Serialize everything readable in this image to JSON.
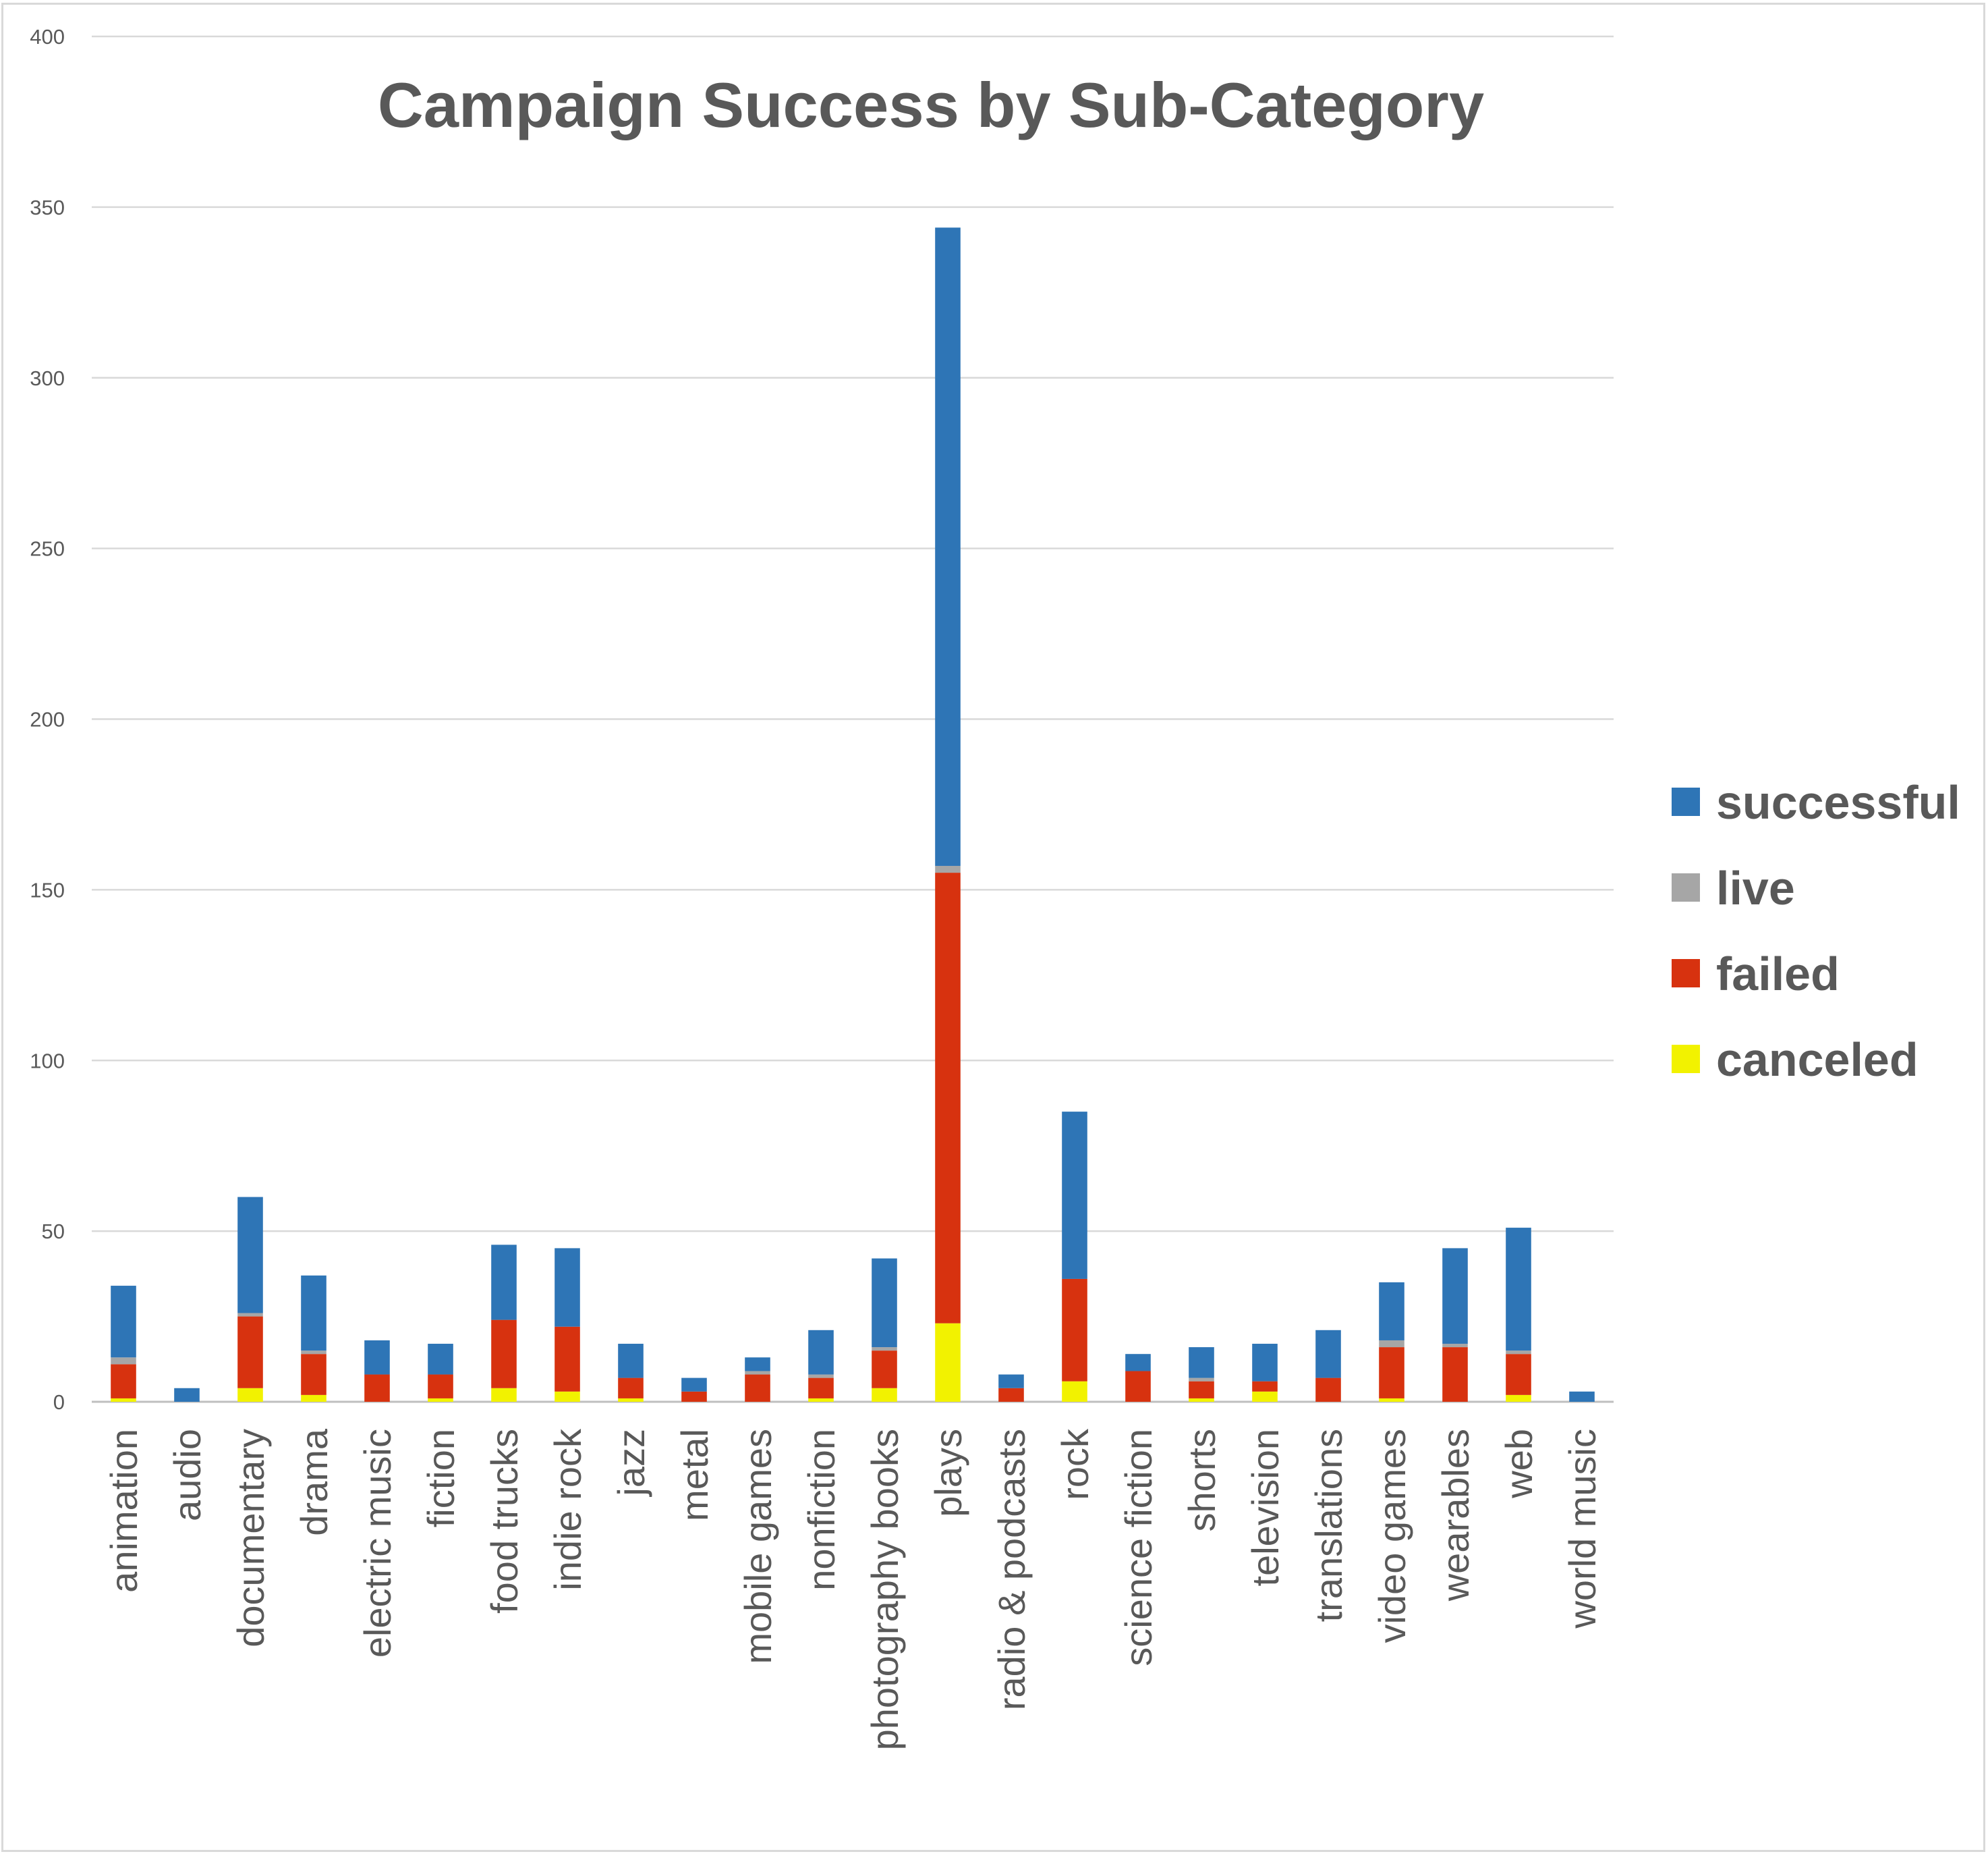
{
  "chart_data": {
    "type": "bar",
    "stacked": true,
    "title": "Campaign Success by Sub-Category",
    "xlabel": "",
    "ylabel": "",
    "ylim": [
      0,
      400
    ],
    "yticks": [
      0,
      50,
      100,
      150,
      200,
      250,
      300,
      350,
      400
    ],
    "grid": true,
    "legend_position": "right",
    "categories": [
      "animation",
      "audio",
      "documentary",
      "drama",
      "electric music",
      "fiction",
      "food trucks",
      "indie rock",
      "jazz",
      "metal",
      "mobile games",
      "nonfiction",
      "photography books",
      "plays",
      "radio & podcasts",
      "rock",
      "science fiction",
      "shorts",
      "television",
      "translations",
      "video games",
      "wearables",
      "web",
      "world music"
    ],
    "series": [
      {
        "name": "canceled",
        "color": "#f2f200",
        "values": [
          1,
          0,
          4,
          2,
          0,
          1,
          4,
          3,
          1,
          0,
          0,
          1,
          4,
          23,
          0,
          6,
          0,
          1,
          3,
          0,
          1,
          0,
          2,
          0
        ]
      },
      {
        "name": "failed",
        "color": "#d7320f",
        "values": [
          10,
          0,
          21,
          12,
          8,
          7,
          20,
          19,
          6,
          3,
          8,
          6,
          11,
          132,
          4,
          30,
          9,
          5,
          3,
          7,
          15,
          16,
          12,
          0
        ]
      },
      {
        "name": "live",
        "color": "#a6a6a6",
        "values": [
          2,
          0,
          1,
          1,
          0,
          0,
          0,
          0,
          0,
          0,
          1,
          1,
          1,
          2,
          0,
          0,
          0,
          1,
          0,
          0,
          2,
          1,
          1,
          0
        ]
      },
      {
        "name": "successful",
        "color": "#2e75b6",
        "values": [
          21,
          4,
          34,
          22,
          10,
          9,
          22,
          23,
          10,
          4,
          4,
          13,
          26,
          187,
          4,
          49,
          5,
          9,
          11,
          14,
          17,
          28,
          36,
          3
        ]
      }
    ],
    "legend_order": [
      "successful",
      "live",
      "failed",
      "canceled"
    ]
  }
}
